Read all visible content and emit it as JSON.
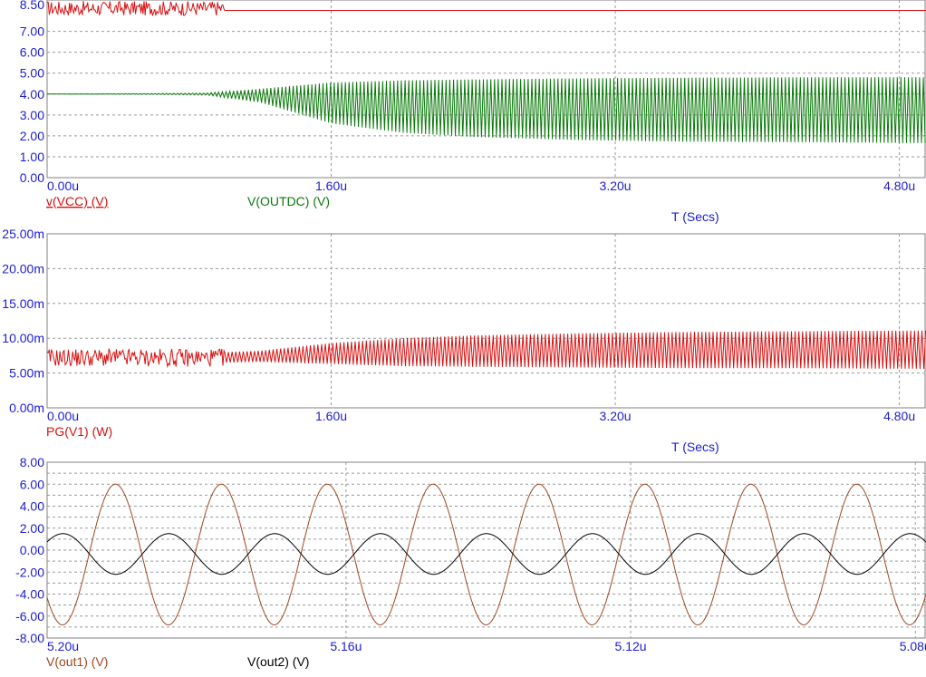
{
  "colors": {
    "axis_text": "#1c1cd8",
    "grid": "#9a9a9a",
    "red": "#d81010",
    "green": "#0a7a0a",
    "brown": "#a0461e",
    "black": "#000000"
  },
  "chart_data": [
    {
      "type": "line",
      "x_label": "T (Secs)",
      "x_ticks": [
        "0.00u",
        "1.60u",
        "3.20u",
        "4.80u"
      ],
      "x_range": [
        0,
        4.95
      ],
      "y_ticks": [
        "0.00",
        "1.00",
        "2.00",
        "3.00",
        "4.00",
        "5.00",
        "6.00",
        "7.00",
        "8.50"
      ],
      "y_range": [
        0,
        8.5
      ],
      "grid": true,
      "legend": [
        "v(VCC) (V)",
        "V(OUTDC) (V)"
      ],
      "series": [
        {
          "name": "v(VCC) (V)",
          "color": "red",
          "description": "noisy ~8.1 V until 1.0u, then flat at 8.0 V",
          "x": [
            0.0,
            1.0,
            1.0,
            4.95
          ],
          "y": [
            8.1,
            8.1,
            8.0,
            8.0
          ],
          "noise_until": 1.0,
          "noise_amp": 0.35
        },
        {
          "name": "V(OUTDC) (V)",
          "color": "green",
          "description": "flat 4.0 V then oscillation envelope grows",
          "envelope_x": [
            0.0,
            0.6,
            0.9,
            1.2,
            1.6,
            2.0,
            2.4,
            3.0,
            3.6,
            4.2,
            4.95
          ],
          "envelope_upper": [
            4.0,
            4.02,
            4.05,
            4.25,
            4.55,
            4.65,
            4.7,
            4.75,
            4.78,
            4.8,
            4.8
          ],
          "envelope_lower": [
            4.0,
            3.98,
            3.95,
            3.6,
            2.6,
            2.15,
            1.95,
            1.8,
            1.72,
            1.7,
            1.65
          ]
        }
      ]
    },
    {
      "type": "line",
      "x_label": "T (Secs)",
      "x_ticks": [
        "0.00u",
        "1.60u",
        "3.20u",
        "4.80u"
      ],
      "x_range": [
        0,
        4.95
      ],
      "y_ticks": [
        "0.00m",
        "5.00m",
        "10.00m",
        "15.00m",
        "20.00m",
        "25.00m"
      ],
      "y_range": [
        0,
        25
      ],
      "grid": true,
      "legend": [
        "PG(V1) (W)"
      ],
      "series": [
        {
          "name": "PG(V1) (W)",
          "color": "red",
          "description": "noisy ~7m until 1.0u then oscillation envelope grows",
          "envelope_x": [
            0.0,
            1.0,
            1.2,
            1.6,
            2.0,
            2.4,
            3.0,
            3.6,
            4.2,
            4.95
          ],
          "envelope_upper": [
            8.0,
            8.0,
            8.2,
            9.3,
            10.0,
            10.4,
            10.7,
            10.9,
            11.0,
            11.1
          ],
          "envelope_lower": [
            6.5,
            6.5,
            6.6,
            6.3,
            6.0,
            5.9,
            5.8,
            5.7,
            5.7,
            5.6
          ]
        }
      ]
    },
    {
      "type": "line",
      "x_ticks": [
        "5.20u",
        "5.16u",
        "5.12u",
        "5.08u"
      ],
      "x_range": [
        5.202,
        5.0785
      ],
      "y_ticks": [
        "-8.00",
        "-6.00",
        "-4.00",
        "-2.00",
        "0.00",
        "2.00",
        "4.00",
        "6.00",
        "8.00"
      ],
      "y_range": [
        -8,
        8
      ],
      "grid": true,
      "legend": [
        "V(out1) (V)",
        "V(out2) (V)"
      ],
      "series": [
        {
          "name": "V(out1) (V)",
          "color": "brown",
          "amplitude": 6.4,
          "offset": -0.4,
          "period_us": 0.01488,
          "peak_at_us": 5.1924
        },
        {
          "name": "V(out2) (V)",
          "color": "black",
          "amplitude": 1.85,
          "offset": -0.35,
          "period_us": 0.01488,
          "peak_at_us": 5.1849
        }
      ]
    }
  ]
}
